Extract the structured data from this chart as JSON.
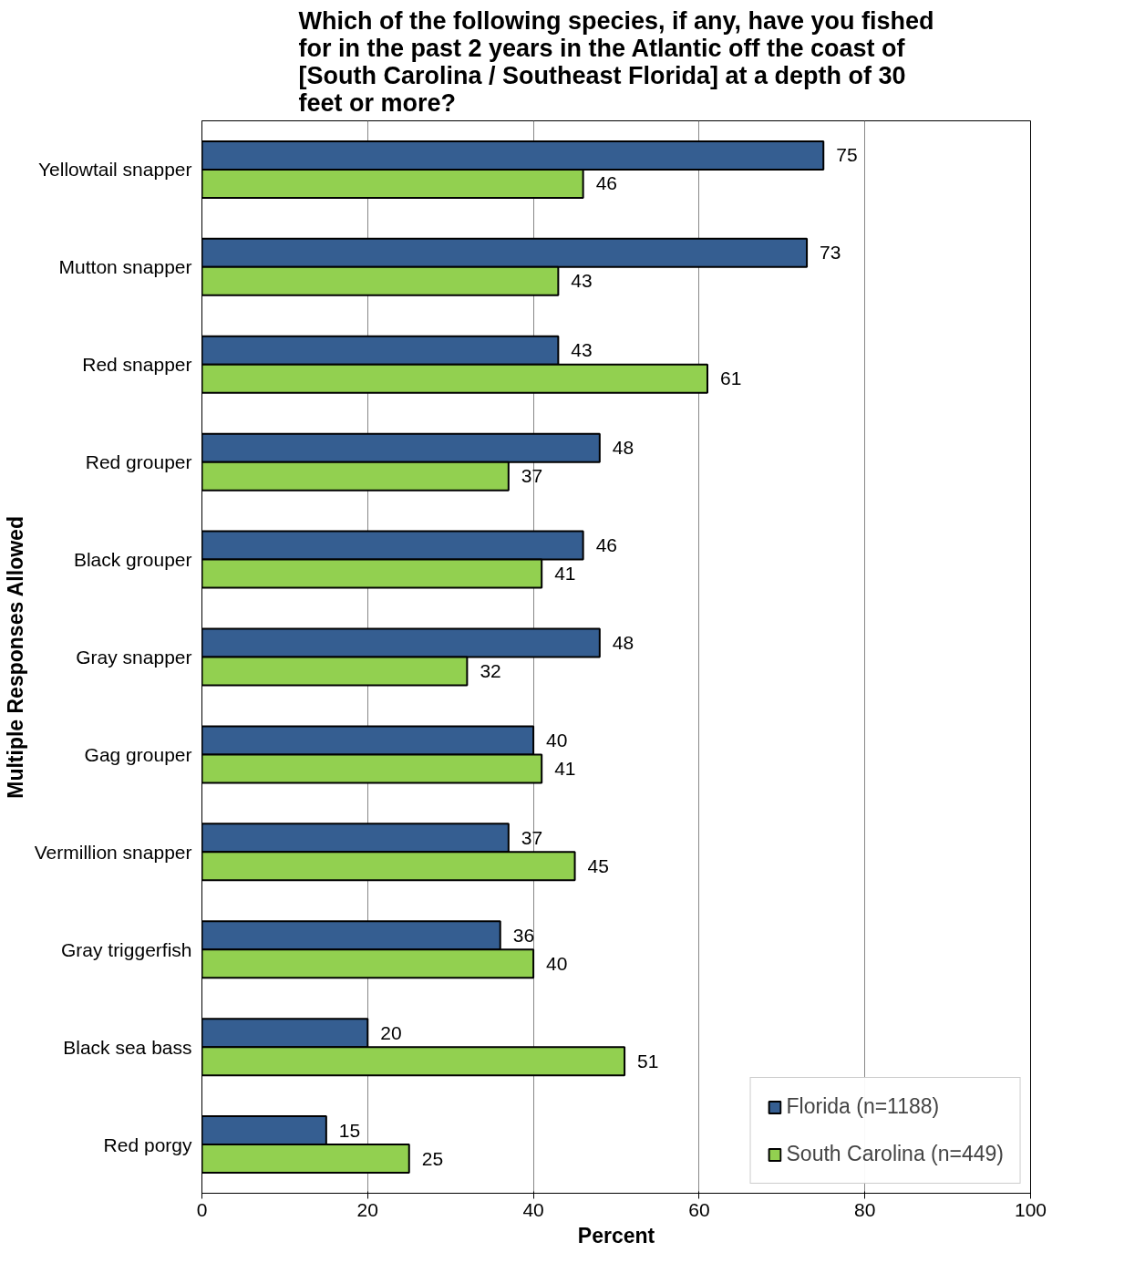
{
  "chart_data": {
    "type": "bar",
    "orientation": "horizontal",
    "title": "Which of the following species, if any, have you fished for in the past 2 years in the Atlantic off the coast of [South Carolina / Southeast Florida] at a depth of 30 feet or more?",
    "xlabel": "Percent",
    "ylabel": "Multiple Responses Allowed",
    "categories": [
      "Yellowtail snapper",
      "Mutton snapper",
      "Red snapper",
      "Red grouper",
      "Black grouper",
      "Gray snapper",
      "Gag grouper",
      "Vermillion snapper",
      "Gray triggerfish",
      "Black sea bass",
      "Red porgy"
    ],
    "series": [
      {
        "name": "Florida (n=1188)",
        "color": "#355e91",
        "values": [
          75,
          73,
          43,
          48,
          46,
          48,
          40,
          37,
          36,
          20,
          15
        ]
      },
      {
        "name": "South Carolina (n=449)",
        "color": "#92d050",
        "values": [
          46,
          43,
          61,
          37,
          41,
          32,
          41,
          45,
          40,
          51,
          25
        ]
      }
    ],
    "xlim": [
      0,
      100
    ],
    "xticks": [
      0,
      20,
      40,
      60,
      80,
      100
    ],
    "grid": "x",
    "legend": "bottom right",
    "data_labels": true
  }
}
